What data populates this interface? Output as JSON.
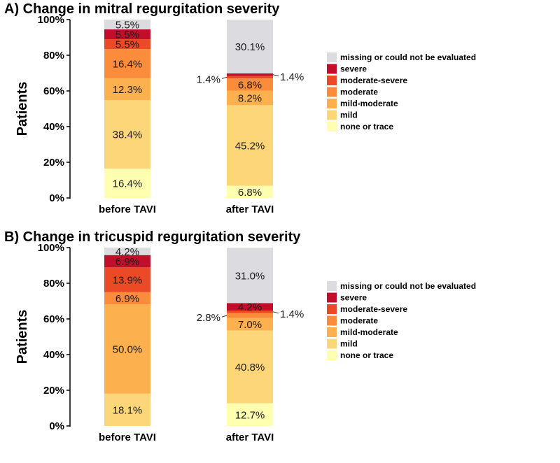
{
  "colors": {
    "none or trace": "#FFFFB0",
    "mild": "#FED67A",
    "mild-moderate": "#FDB04E",
    "moderate": "#FA8C3C",
    "moderate-severe": "#EC4A27",
    "severe": "#C20E2A",
    "missing or could not be evaluated": "#DCDBE0"
  },
  "chart_data": [
    {
      "type": "bar",
      "stacked": true,
      "panel": "A)",
      "title": "Change in mitral regurgitation severity",
      "ylabel": "Patients",
      "xlabel": "",
      "ylim": [
        0,
        100
      ],
      "yticks": [
        "0%",
        "20%",
        "40%",
        "60%",
        "80%",
        "100%"
      ],
      "categories": [
        "before TAVI",
        "after TAVI"
      ],
      "legend_position": "right",
      "series": [
        {
          "name": "none or trace",
          "values": [
            16.4,
            6.8
          ],
          "labels": [
            "16.4%",
            "6.8%"
          ]
        },
        {
          "name": "mild",
          "values": [
            38.4,
            45.2
          ],
          "labels": [
            "38.4%",
            "45.2%"
          ]
        },
        {
          "name": "mild-moderate",
          "values": [
            12.3,
            8.2
          ],
          "labels": [
            "12.3%",
            "8.2%"
          ]
        },
        {
          "name": "moderate",
          "values": [
            16.4,
            6.8
          ],
          "labels": [
            "16.4%",
            "6.8%"
          ]
        },
        {
          "name": "moderate-severe",
          "values": [
            5.5,
            1.4
          ],
          "labels": [
            "5.5%",
            "1.4%"
          ]
        },
        {
          "name": "severe",
          "values": [
            5.5,
            1.4
          ],
          "labels": [
            "5.5%",
            "1.4%"
          ]
        },
        {
          "name": "missing or could not be evaluated",
          "values": [
            5.5,
            30.1
          ],
          "labels": [
            "5.5%",
            "30.1%"
          ]
        }
      ]
    },
    {
      "type": "bar",
      "stacked": true,
      "panel": "B)",
      "title": "Change in tricuspid regurgitation severity",
      "ylabel": "Patients",
      "xlabel": "",
      "ylim": [
        0,
        100
      ],
      "yticks": [
        "0%",
        "20%",
        "40%",
        "60%",
        "80%",
        "100%"
      ],
      "categories": [
        "before TAVI",
        "after TAVI"
      ],
      "legend_position": "right",
      "series": [
        {
          "name": "none or trace",
          "values": [
            0,
            12.7
          ],
          "labels": [
            "",
            "12.7%"
          ]
        },
        {
          "name": "mild",
          "values": [
            18.1,
            40.8
          ],
          "labels": [
            "18.1%",
            "40.8%"
          ]
        },
        {
          "name": "mild-moderate",
          "values": [
            50.0,
            7.0
          ],
          "labels": [
            "50.0%",
            "7.0%"
          ]
        },
        {
          "name": "moderate",
          "values": [
            6.9,
            2.8
          ],
          "labels": [
            "6.9%",
            "2.8%"
          ]
        },
        {
          "name": "moderate-severe",
          "values": [
            13.9,
            1.4
          ],
          "labels": [
            "13.9%",
            "1.4%"
          ]
        },
        {
          "name": "severe",
          "values": [
            6.9,
            4.2
          ],
          "labels": [
            "6.9%",
            "4.2%"
          ]
        },
        {
          "name": "missing or could not be evaluated",
          "values": [
            4.2,
            31.0
          ],
          "labels": [
            "4.2%",
            "31.0%"
          ]
        }
      ]
    }
  ]
}
